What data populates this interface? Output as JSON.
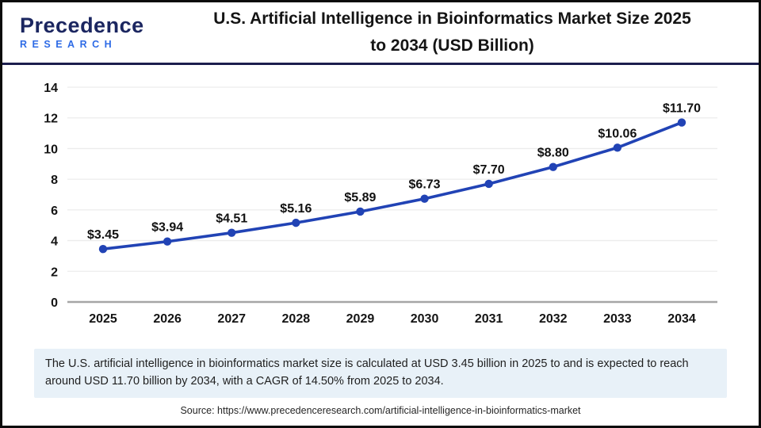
{
  "header": {
    "logo": {
      "brand": "Precedence",
      "sub": "RESEARCH"
    },
    "title_line1": "U.S. Artificial Intelligence in Bioinformatics Market Size 2025",
    "title_line2": "to 2034 (USD Billion)"
  },
  "chart_data": {
    "type": "line",
    "title": "U.S. Artificial Intelligence in Bioinformatics Market Size 2025 to 2034 (USD Billion)",
    "categories": [
      "2025",
      "2026",
      "2027",
      "2028",
      "2029",
      "2030",
      "2031",
      "2032",
      "2033",
      "2034"
    ],
    "values": [
      3.45,
      3.94,
      4.51,
      5.16,
      5.89,
      6.73,
      7.7,
      8.8,
      10.06,
      11.7
    ],
    "data_labels": [
      "$3.45",
      "$3.94",
      "$4.51",
      "$5.16",
      "$5.89",
      "$6.73",
      "$7.70",
      "$8.80",
      "$10.06",
      "$11.70"
    ],
    "xlabel": "",
    "ylabel": "",
    "ylim": [
      0,
      14
    ],
    "yticks": [
      0,
      2,
      4,
      6,
      8,
      10,
      12,
      14
    ],
    "grid": true,
    "legend": false,
    "line_color": "#2143b5",
    "marker": "circle"
  },
  "summary": {
    "text": "The U.S. artificial intelligence in bioinformatics market size is calculated at USD 3.45 billion in 2025 to and is expected to reach around USD 11.70 billion by 2034, with a CAGR of 14.50% from 2025 to 2034."
  },
  "source": {
    "text": "Source: https://www.precedenceresearch.com/artificial-intelligence-in-bioinformatics-market"
  },
  "colors": {
    "accent_blue": "#2143b5",
    "logo_navy": "#1b2660",
    "logo_blue": "#2e6be6",
    "divider_navy": "#1c1e4e",
    "summary_bg": "#e8f1f8",
    "gridline": "#ececec",
    "zero_axis": "#a6a6a6"
  }
}
